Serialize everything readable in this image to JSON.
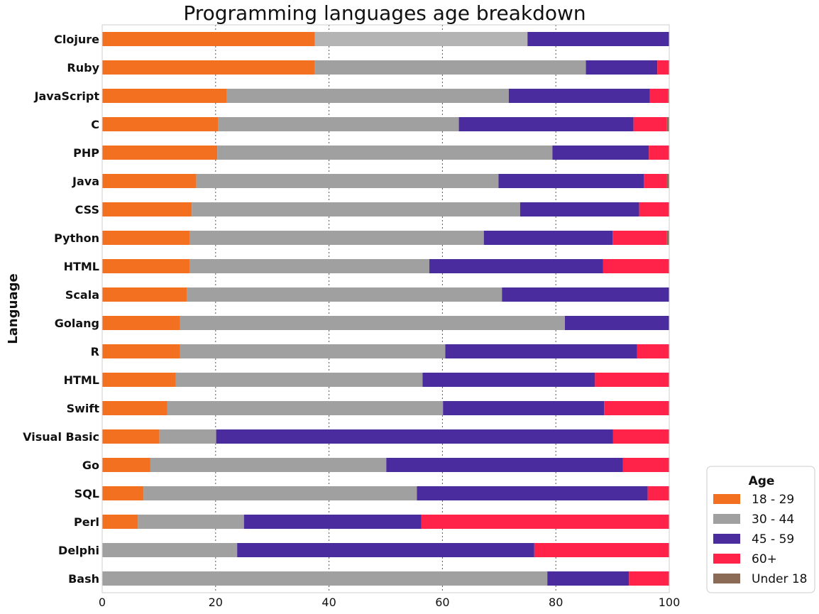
{
  "chart_data": {
    "type": "bar",
    "orientation": "horizontal",
    "stacked": true,
    "title": "Programming languages age breakdown",
    "ylabel": "Language",
    "xlabel": "",
    "xlim": [
      0,
      100
    ],
    "xticks": [
      0,
      20,
      40,
      60,
      80,
      100
    ],
    "grid": "x-dotted",
    "legend": {
      "title": "Age",
      "placement": "bottom-right-outside"
    },
    "categories": [
      "Clojure",
      "Ruby",
      "JavaScript",
      "C",
      "PHP",
      "Java",
      "CSS",
      "Python",
      "HTML",
      "Scala",
      "Golang",
      "R",
      "HTML",
      "Swift",
      "Visual Basic",
      "Go",
      "SQL",
      "Perl",
      "Delphi",
      "Bash"
    ],
    "series": [
      {
        "name": "18 - 29",
        "color": "#F37021",
        "values": [
          37.5,
          37.5,
          22.0,
          20.5,
          20.3,
          16.6,
          15.8,
          15.4,
          15.4,
          14.9,
          13.7,
          13.7,
          13.0,
          11.5,
          10.1,
          8.5,
          7.3,
          6.3,
          0,
          0
        ]
      },
      {
        "name": "30 - 44",
        "color": "#A0A0A0",
        "values": [
          37.5,
          47.8,
          49.7,
          42.4,
          59.1,
          53.3,
          57.9,
          51.9,
          42.3,
          55.6,
          67.9,
          46.8,
          43.5,
          48.6,
          10.0,
          41.6,
          48.2,
          18.7,
          23.8,
          78.5
        ]
      },
      {
        "name": "45 - 59",
        "color": "#4B2C9E",
        "values": [
          25.0,
          12.6,
          24.9,
          30.8,
          17.0,
          25.6,
          21.0,
          22.7,
          30.6,
          29.5,
          18.4,
          33.8,
          30.4,
          28.4,
          70.0,
          41.7,
          40.7,
          31.3,
          52.4,
          14.4
        ]
      },
      {
        "name": "60+",
        "color": "#FF2249",
        "values": [
          0,
          2.1,
          3.2,
          5.9,
          3.6,
          4.0,
          5.3,
          9.6,
          11.7,
          0,
          0,
          5.7,
          13.1,
          11.5,
          9.9,
          8.2,
          3.8,
          43.7,
          23.8,
          7.1
        ]
      },
      {
        "name": "Under 18",
        "color": "#8B6B55",
        "values": [
          0,
          0,
          0.2,
          0.4,
          0,
          0.5,
          0,
          0.4,
          0,
          0,
          0,
          0,
          0,
          0,
          0,
          0,
          0,
          0,
          0,
          0
        ]
      }
    ]
  }
}
